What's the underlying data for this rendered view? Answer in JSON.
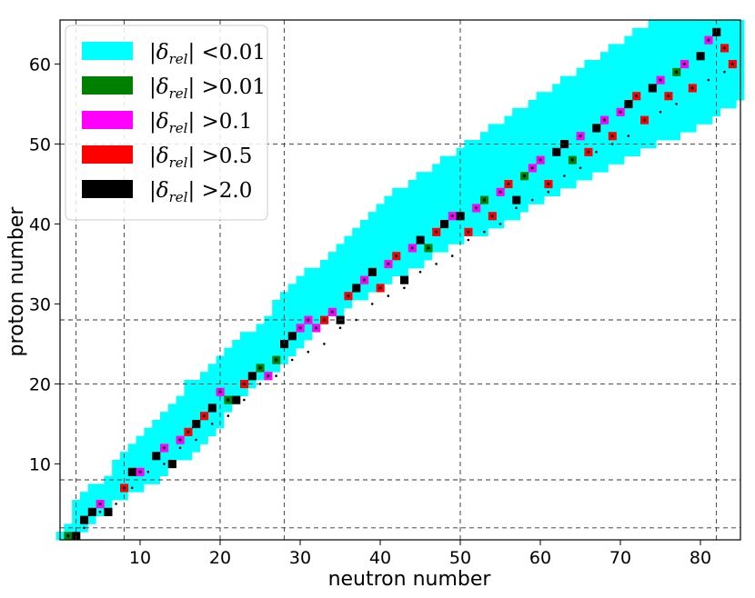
{
  "chart_data": {
    "type": "heatmap",
    "xlabel": "neutron number",
    "ylabel": "proton number",
    "xlim": [
      0,
      85
    ],
    "ylim": [
      0.5,
      65.5
    ],
    "xticks": [
      "10",
      "20",
      "30",
      "40",
      "50",
      "60",
      "70",
      "80"
    ],
    "xtick_values": [
      10,
      20,
      30,
      40,
      50,
      60,
      70,
      80
    ],
    "yticks": [
      "10",
      "20",
      "30",
      "40",
      "50",
      "60"
    ],
    "ytick_values": [
      10,
      20,
      30,
      40,
      50,
      60
    ],
    "magic_numbers": [
      2,
      8,
      20,
      28,
      50,
      82
    ],
    "grid": "dashed lines at magic numbers",
    "legend_position": "top-left",
    "legend": [
      {
        "prefix": "δ",
        "subscript": "rel",
        "threshold": "<0.01",
        "color": "#00ffff"
      },
      {
        "prefix": "δ",
        "subscript": "rel",
        "threshold": ">0.01",
        "color": "#008000"
      },
      {
        "prefix": "δ",
        "subscript": "rel",
        "threshold": ">0.1",
        "color": "#ff00ff"
      },
      {
        "prefix": "δ",
        "subscript": "rel",
        "threshold": ">0.5",
        "color": "#ff0000"
      },
      {
        "prefix": "δ",
        "subscript": "rel",
        "threshold": ">2.0",
        "color": "#000000"
      }
    ],
    "band": [
      {
        "z": 1,
        "n_min": 0,
        "n_max": 2
      },
      {
        "z": 3,
        "n_min": 2,
        "n_max": 4
      },
      {
        "z": 5,
        "n_min": 2,
        "n_max": 6
      },
      {
        "z": 7,
        "n_min": 4,
        "n_max": 10
      },
      {
        "z": 8,
        "n_min": 6,
        "n_max": 12
      },
      {
        "z": 10,
        "n_min": 7,
        "n_max": 14
      },
      {
        "z": 12,
        "n_min": 9,
        "n_max": 17
      },
      {
        "z": 14,
        "n_min": 11,
        "n_max": 19
      },
      {
        "z": 16,
        "n_min": 13,
        "n_max": 20
      },
      {
        "z": 18,
        "n_min": 15,
        "n_max": 22
      },
      {
        "z": 20,
        "n_min": 16,
        "n_max": 24
      },
      {
        "z": 22,
        "n_min": 19,
        "n_max": 27
      },
      {
        "z": 24,
        "n_min": 21,
        "n_max": 29
      },
      {
        "z": 26,
        "n_min": 23,
        "n_max": 31
      },
      {
        "z": 28,
        "n_min": 26,
        "n_max": 33
      },
      {
        "z": 30,
        "n_min": 27,
        "n_max": 36
      },
      {
        "z": 32,
        "n_min": 29,
        "n_max": 39
      },
      {
        "z": 34,
        "n_min": 31,
        "n_max": 43
      },
      {
        "z": 36,
        "n_min": 34,
        "n_max": 46
      },
      {
        "z": 38,
        "n_min": 36,
        "n_max": 50
      },
      {
        "z": 40,
        "n_min": 38,
        "n_max": 55
      },
      {
        "z": 42,
        "n_min": 40,
        "n_max": 58
      },
      {
        "z": 44,
        "n_min": 42,
        "n_max": 62
      },
      {
        "z": 46,
        "n_min": 45,
        "n_max": 66
      },
      {
        "z": 48,
        "n_min": 48,
        "n_max": 70
      },
      {
        "z": 50,
        "n_min": 51,
        "n_max": 74
      },
      {
        "z": 52,
        "n_min": 54,
        "n_max": 79
      },
      {
        "z": 54,
        "n_min": 57,
        "n_max": 82
      },
      {
        "z": 56,
        "n_min": 60,
        "n_max": 85
      },
      {
        "z": 58,
        "n_min": 63,
        "n_max": 85
      },
      {
        "z": 60,
        "n_min": 66,
        "n_max": 85
      },
      {
        "z": 62,
        "n_min": 69,
        "n_max": 85
      },
      {
        "z": 64,
        "n_min": 72,
        "n_max": 85
      },
      {
        "z": 65,
        "n_min": 74,
        "n_max": 85
      }
    ],
    "gap_cells": [
      {
        "z": 47,
        "n_min": 73,
        "n_max": 77
      },
      {
        "z": 48,
        "n_min": 75,
        "n_max": 80
      }
    ],
    "cells": [
      {
        "n": 1,
        "z": 1,
        "c": 1
      },
      {
        "n": 2,
        "z": 1,
        "c": 4
      },
      {
        "n": 3,
        "z": 3,
        "c": 4
      },
      {
        "n": 4,
        "z": 4,
        "c": 4
      },
      {
        "n": 5,
        "z": 5,
        "c": 2
      },
      {
        "n": 6,
        "z": 4,
        "c": 4
      },
      {
        "n": 8,
        "z": 7,
        "c": 3
      },
      {
        "n": 9,
        "z": 9,
        "c": 4
      },
      {
        "n": 10,
        "z": 9,
        "c": 2
      },
      {
        "n": 12,
        "z": 11,
        "c": 4
      },
      {
        "n": 13,
        "z": 12,
        "c": 2
      },
      {
        "n": 14,
        "z": 10,
        "c": 4
      },
      {
        "n": 15,
        "z": 13,
        "c": 2
      },
      {
        "n": 16,
        "z": 14,
        "c": 3
      },
      {
        "n": 17,
        "z": 15,
        "c": 4
      },
      {
        "n": 18,
        "z": 16,
        "c": 3
      },
      {
        "n": 19,
        "z": 17,
        "c": 4
      },
      {
        "n": 20,
        "z": 19,
        "c": 2
      },
      {
        "n": 21,
        "z": 18,
        "c": 1
      },
      {
        "n": 22,
        "z": 18,
        "c": 4
      },
      {
        "n": 23,
        "z": 20,
        "c": 3
      },
      {
        "n": 24,
        "z": 21,
        "c": 4
      },
      {
        "n": 25,
        "z": 22,
        "c": 1
      },
      {
        "n": 26,
        "z": 21,
        "c": 2
      },
      {
        "n": 27,
        "z": 23,
        "c": 1
      },
      {
        "n": 28,
        "z": 25,
        "c": 4
      },
      {
        "n": 29,
        "z": 26,
        "c": 4
      },
      {
        "n": 30,
        "z": 27,
        "c": 2
      },
      {
        "n": 31,
        "z": 28,
        "c": 2
      },
      {
        "n": 32,
        "z": 27,
        "c": 2
      },
      {
        "n": 33,
        "z": 28,
        "c": 3
      },
      {
        "n": 34,
        "z": 29,
        "c": 2
      },
      {
        "n": 35,
        "z": 28,
        "c": 4
      },
      {
        "n": 36,
        "z": 31,
        "c": 3
      },
      {
        "n": 37,
        "z": 32,
        "c": 4
      },
      {
        "n": 38,
        "z": 33,
        "c": 2
      },
      {
        "n": 39,
        "z": 34,
        "c": 4
      },
      {
        "n": 40,
        "z": 32,
        "c": 3
      },
      {
        "n": 41,
        "z": 35,
        "c": 2
      },
      {
        "n": 42,
        "z": 36,
        "c": 3
      },
      {
        "n": 43,
        "z": 33,
        "c": 4
      },
      {
        "n": 44,
        "z": 37,
        "c": 2
      },
      {
        "n": 45,
        "z": 38,
        "c": 4
      },
      {
        "n": 46,
        "z": 37,
        "c": 1
      },
      {
        "n": 47,
        "z": 39,
        "c": 3
      },
      {
        "n": 48,
        "z": 40,
        "c": 4
      },
      {
        "n": 49,
        "z": 41,
        "c": 2
      },
      {
        "n": 50,
        "z": 41,
        "c": 4
      },
      {
        "n": 51,
        "z": 39,
        "c": 3
      },
      {
        "n": 52,
        "z": 42,
        "c": 2
      },
      {
        "n": 53,
        "z": 43,
        "c": 1
      },
      {
        "n": 54,
        "z": 41,
        "c": 3
      },
      {
        "n": 55,
        "z": 44,
        "c": 2
      },
      {
        "n": 56,
        "z": 45,
        "c": 3
      },
      {
        "n": 57,
        "z": 43,
        "c": 4
      },
      {
        "n": 58,
        "z": 46,
        "c": 1
      },
      {
        "n": 59,
        "z": 47,
        "c": 2
      },
      {
        "n": 60,
        "z": 48,
        "c": 2
      },
      {
        "n": 61,
        "z": 45,
        "c": 3
      },
      {
        "n": 62,
        "z": 49,
        "c": 4
      },
      {
        "n": 63,
        "z": 50,
        "c": 4
      },
      {
        "n": 64,
        "z": 48,
        "c": 1
      },
      {
        "n": 65,
        "z": 51,
        "c": 2
      },
      {
        "n": 66,
        "z": 49,
        "c": 3
      },
      {
        "n": 67,
        "z": 52,
        "c": 4
      },
      {
        "n": 68,
        "z": 53,
        "c": 2
      },
      {
        "n": 69,
        "z": 51,
        "c": 3
      },
      {
        "n": 70,
        "z": 54,
        "c": 2
      },
      {
        "n": 71,
        "z": 55,
        "c": 4
      },
      {
        "n": 72,
        "z": 56,
        "c": 3
      },
      {
        "n": 73,
        "z": 53,
        "c": 3
      },
      {
        "n": 74,
        "z": 57,
        "c": 4
      },
      {
        "n": 75,
        "z": 58,
        "c": 2
      },
      {
        "n": 76,
        "z": 56,
        "c": 3
      },
      {
        "n": 77,
        "z": 59,
        "c": 1
      },
      {
        "n": 78,
        "z": 60,
        "c": 2
      },
      {
        "n": 79,
        "z": 57,
        "c": 3
      },
      {
        "n": 80,
        "z": 61,
        "c": 4
      },
      {
        "n": 81,
        "z": 63,
        "c": 2
      },
      {
        "n": 82,
        "z": 64,
        "c": 4
      },
      {
        "n": 83,
        "z": 62,
        "c": 3
      },
      {
        "n": 84,
        "z": 60,
        "c": 3
      }
    ]
  }
}
